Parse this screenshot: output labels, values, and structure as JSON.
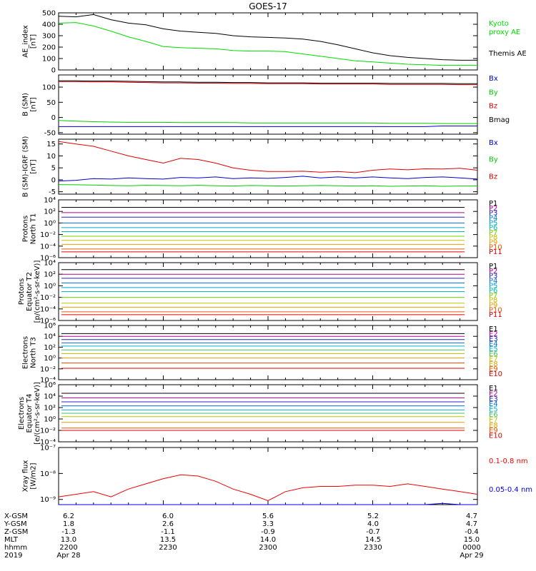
{
  "title": "GOES-17",
  "colors": {
    "ae_kyoto": "#00dd00",
    "ae_themis": "#000000",
    "bx": "#0000cc",
    "by": "#00cc00",
    "bz": "#dd0000",
    "bmag": "#000000",
    "xray_long": "#ee0000",
    "xray_short": "#0000ee"
  },
  "panels": [
    {
      "id": "ae",
      "ylabel": [
        "AE_index",
        "[nT]"
      ],
      "ticks": [
        "500",
        "400",
        "300",
        "200",
        "100",
        "0"
      ],
      "legend": [
        "Kyoto",
        "proxy AE",
        "Themis AE"
      ]
    },
    {
      "id": "bsm",
      "ylabel": [
        "B (SM)",
        "[nT]"
      ],
      "ticks": [
        "100",
        "50",
        "0",
        "-50"
      ],
      "legend": [
        "Bx",
        "By",
        "Bz",
        "Bmag"
      ]
    },
    {
      "id": "bdiff",
      "ylabel": [
        "B (SM)-IGRF (SM)",
        "[nT]"
      ],
      "ticks": [
        "15",
        "10",
        "5",
        "0",
        "-5"
      ],
      "legend": [
        "Bx",
        "By",
        "Bz"
      ]
    },
    {
      "id": "pnorth",
      "ylabel": [
        "Protons",
        "North T1"
      ],
      "ticks": [
        "10⁴",
        "10²",
        "10⁰",
        "10⁻²",
        "10⁻⁴",
        "10⁻⁶"
      ],
      "legend": [
        "P1",
        "P2",
        "P3",
        "P4",
        "P5",
        "P6",
        "P7",
        "P8",
        "P9",
        "P10",
        "P11"
      ]
    },
    {
      "id": "peq",
      "ylabel": [
        "Protons",
        "Equator T2",
        "[p/(cm²-s-sr-keV)]"
      ],
      "ticks": [
        "10⁴",
        "10²",
        "10⁰",
        "10⁻²",
        "10⁻⁴",
        "10⁻⁶"
      ],
      "legend": [
        "P1",
        "P2",
        "P3",
        "P4",
        "P5",
        "P6",
        "P7",
        "P8",
        "P9",
        "P10",
        "P11"
      ]
    },
    {
      "id": "enorth",
      "ylabel": [
        "Electrons",
        "North T3"
      ],
      "ticks": [
        "10⁶",
        "10⁴",
        "10²",
        "10⁰",
        "10⁻²",
        "10⁻⁴"
      ],
      "legend": [
        "E1",
        "E2",
        "E3",
        "E4",
        "E5",
        "E6",
        "E7",
        "E8",
        "E9",
        "E10"
      ]
    },
    {
      "id": "eeq",
      "ylabel": [
        "Electrons",
        "Equator T4",
        "[e/(cm²-s-sr-keV)]"
      ],
      "ticks": [
        "10⁶",
        "10⁴",
        "10²",
        "10⁰",
        "10⁻²",
        "10⁻⁴"
      ],
      "legend": [
        "E1",
        "E2",
        "E3",
        "E4",
        "E5",
        "E6",
        "E7",
        "E8",
        "E9",
        "E10"
      ]
    },
    {
      "id": "xray",
      "ylabel": [
        "Xray flux",
        "[W/m2]"
      ],
      "ticks": [
        "10⁻⁷",
        "10⁻⁸",
        "10⁻⁹"
      ],
      "legend": [
        "0.1-0.8 nm",
        "0.05-0.4 nm"
      ]
    }
  ],
  "footer": {
    "row_labels": [
      "X-GSM",
      "Y-GSM",
      "Z-GSM",
      "MLT",
      "hhmm",
      "2019"
    ],
    "columns": [
      [
        "6.2",
        "1.8",
        "-1.3",
        "13.0",
        "2200",
        "Apr 28"
      ],
      [
        "6.0",
        "2.6",
        "-1.1",
        "13.5",
        "2230",
        ""
      ],
      [
        "5.6",
        "3.3",
        "-0.9",
        "14.0",
        "2300",
        ""
      ],
      [
        "5.2",
        "4.0",
        "-0.7",
        "14.5",
        "2330",
        ""
      ],
      [
        "4.7",
        "4.7",
        "-0.4",
        "15.0",
        "0000",
        "Apr 29"
      ]
    ]
  },
  "chart_data": {
    "type": "line",
    "x_unit": "UT hhmm",
    "x": [
      "2200",
      "2205",
      "2210",
      "2215",
      "2220",
      "2225",
      "2230",
      "2235",
      "2240",
      "2245",
      "2250",
      "2255",
      "2300",
      "2305",
      "2310",
      "2315",
      "2320",
      "2325",
      "2330",
      "2335",
      "2340",
      "2345",
      "2350",
      "2355",
      "0000"
    ],
    "ae_index": {
      "ylim": [
        0,
        500
      ],
      "series": [
        {
          "name": "Themis AE",
          "values": [
            470,
            465,
            485,
            440,
            410,
            395,
            360,
            340,
            330,
            320,
            300,
            290,
            285,
            280,
            270,
            250,
            220,
            185,
            150,
            125,
            110,
            100,
            90,
            85,
            85
          ]
        },
        {
          "name": "Kyoto proxy AE",
          "values": [
            410,
            415,
            385,
            340,
            290,
            250,
            205,
            195,
            190,
            185,
            170,
            165,
            165,
            160,
            140,
            120,
            100,
            80,
            70,
            60,
            50,
            45,
            40,
            40,
            40
          ]
        }
      ]
    },
    "b_sm": {
      "ylim": [
        -55,
        140
      ],
      "series": [
        {
          "name": "Bx",
          "values": [
            -30,
            -30,
            -30,
            -30,
            -30,
            -30,
            -30,
            -30,
            -30,
            -30,
            -30,
            -30,
            -30,
            -30,
            -30,
            -30,
            -30,
            -30,
            -30,
            -30,
            -30,
            -30,
            -28,
            -28,
            -28
          ]
        },
        {
          "name": "By",
          "values": [
            -10,
            -12,
            -14,
            -15,
            -16,
            -16,
            -16,
            -17,
            -17,
            -17,
            -17,
            -18,
            -18,
            -18,
            -18,
            -18,
            -18,
            -18,
            -18,
            -19,
            -19,
            -19,
            -20,
            -20,
            -20
          ]
        },
        {
          "name": "Bz",
          "values": [
            118,
            118,
            117,
            117,
            116,
            115,
            114,
            114,
            113,
            113,
            112,
            112,
            111,
            111,
            111,
            110,
            110,
            110,
            110,
            109,
            109,
            109,
            109,
            108,
            108
          ]
        },
        {
          "name": "Bmag",
          "values": [
            121,
            121,
            120,
            120,
            119,
            118,
            117,
            117,
            116,
            116,
            115,
            115,
            114,
            114,
            114,
            113,
            113,
            113,
            113,
            112,
            112,
            112,
            112,
            111,
            111
          ]
        }
      ]
    },
    "b_minus_igrf": {
      "ylim": [
        -6,
        17
      ],
      "series": [
        {
          "name": "Bx",
          "values": [
            -0.5,
            -0.2,
            0.5,
            0.3,
            0.8,
            0.5,
            0.3,
            1.0,
            0.8,
            1.2,
            0.5,
            0.8,
            0.6,
            1.0,
            1.5,
            0.8,
            1.2,
            0.8,
            1.2,
            0.8,
            0.5,
            1.0,
            1.2,
            0.8,
            0.3
          ]
        },
        {
          "name": "By",
          "values": [
            -2.0,
            -2.1,
            -2.2,
            -2.4,
            -2.5,
            -2.3,
            -2.4,
            -2.5,
            -2.3,
            -2.5,
            -2.6,
            -2.4,
            -2.5,
            -2.6,
            -2.5,
            -2.4,
            -2.5,
            -2.6,
            -2.5,
            -2.7,
            -2.6,
            -2.5,
            -2.7,
            -2.6,
            -2.6
          ]
        },
        {
          "name": "Bz",
          "values": [
            16,
            15,
            14,
            12,
            10,
            8.5,
            7,
            9,
            8.5,
            7,
            5,
            4,
            3.5,
            3.5,
            3.6,
            3.2,
            3.5,
            3.0,
            4.0,
            4.5,
            4.2,
            4.6,
            4.5,
            4.8,
            4.0
          ]
        }
      ]
    },
    "protons_north_t1": {
      "ylog": true,
      "ylim_exp": [
        -6,
        4
      ],
      "channels": [
        "P1",
        "P2",
        "P3",
        "P4",
        "P5",
        "P6",
        "P7",
        "P8",
        "P9",
        "P10",
        "P11"
      ],
      "log10_levels": [
        2.7,
        1.8,
        1.0,
        0.0,
        -0.8,
        -1.5,
        -2.3,
        -3.0,
        -3.7,
        -4.5,
        -5.0
      ]
    },
    "protons_equator_t2": {
      "ylog": true,
      "ylim_exp": [
        -6,
        4
      ],
      "channels": [
        "P1",
        "P2",
        "P3",
        "P4",
        "P5",
        "P6",
        "P7",
        "P8",
        "P9",
        "P10",
        "P11"
      ],
      "log10_levels": [
        2.8,
        2.0,
        1.3,
        0.5,
        -0.3,
        -1.0,
        -2.0,
        -3.0,
        -3.7,
        -4.5,
        -5.0
      ]
    },
    "electrons_north_t3": {
      "ylog": true,
      "ylim_exp": [
        -4,
        6
      ],
      "channels": [
        "E1",
        "E2",
        "E3",
        "E4",
        "E5",
        "E6",
        "E7",
        "E8",
        "E9",
        "E10"
      ],
      "log10_levels": [
        4.5,
        4.0,
        3.4,
        2.8,
        2.2,
        1.5,
        0.8,
        0.0,
        -0.9,
        -1.9
      ]
    },
    "electrons_equator_t4": {
      "ylog": true,
      "ylim_exp": [
        -4,
        6
      ],
      "channels": [
        "E1",
        "E2",
        "E3",
        "E4",
        "E5",
        "E6",
        "E7",
        "E8",
        "E9",
        "E10"
      ],
      "log10_levels": [
        4.5,
        3.7,
        3.0,
        2.3,
        1.6,
        1.0,
        0.4,
        -0.6,
        -1.6,
        -2.0
      ]
    },
    "xray_flux": {
      "ylog": true,
      "ylim_exp": [
        -9.2,
        -7
      ],
      "series": [
        {
          "name": "0.1-0.8 nm",
          "log10_values": [
            -8.9,
            -8.8,
            -8.7,
            -8.9,
            -8.6,
            -8.4,
            -8.2,
            -8.05,
            -8.1,
            -8.3,
            -8.6,
            -8.8,
            -9.05,
            -8.7,
            -8.55,
            -8.5,
            -8.5,
            -8.45,
            -8.45,
            -8.5,
            -8.4,
            -8.5,
            -8.6,
            -8.7,
            -8.8
          ]
        },
        {
          "name": "0.05-0.4 nm",
          "log10_values": [
            -9.4,
            -9.3,
            -9.2,
            -9.3,
            -9.4,
            -9.4,
            -9.4,
            -9.4,
            -9.4,
            -9.4,
            -9.4,
            -9.4,
            -9.4,
            -9.4,
            -9.4,
            -9.4,
            -9.4,
            -9.4,
            -9.4,
            -9.4,
            -9.4,
            -9.2,
            -9.15,
            -9.25,
            -9.3
          ]
        }
      ]
    }
  }
}
